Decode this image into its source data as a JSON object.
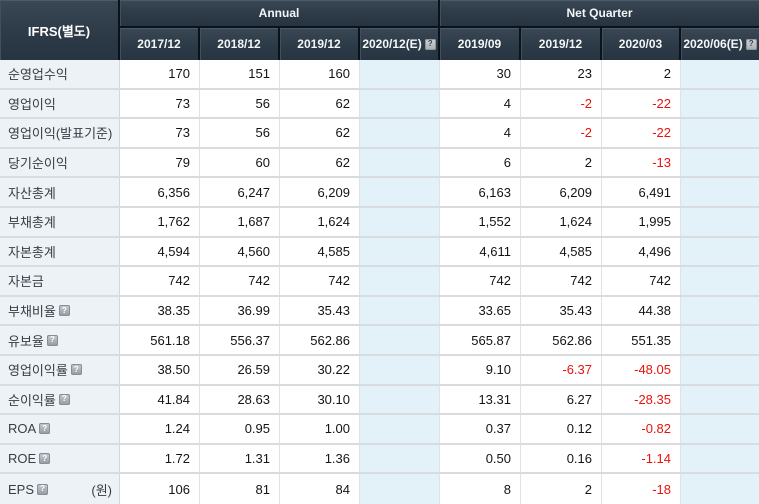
{
  "table": {
    "corner_label": "IFRS(별도)",
    "help_icon": "?",
    "groups": {
      "annual": "Annual",
      "net_quarter": "Net Quarter"
    },
    "columns": [
      {
        "label": "2017/12",
        "estimate": false
      },
      {
        "label": "2018/12",
        "estimate": false
      },
      {
        "label": "2019/12",
        "estimate": false
      },
      {
        "label": "2020/12(E)",
        "estimate": true
      },
      {
        "label": "2019/09",
        "estimate": false
      },
      {
        "label": "2019/12",
        "estimate": false
      },
      {
        "label": "2020/03",
        "estimate": false
      },
      {
        "label": "2020/06(E)",
        "estimate": true
      }
    ],
    "rows": [
      {
        "label": "순영업수익",
        "has_help": false,
        "unit": "",
        "values": [
          "170",
          "151",
          "160",
          "",
          "30",
          "23",
          "2",
          ""
        ]
      },
      {
        "label": "영업이익",
        "has_help": false,
        "unit": "",
        "values": [
          "73",
          "56",
          "62",
          "",
          "4",
          "-2",
          "-22",
          ""
        ]
      },
      {
        "label": "영업이익(발표기준)",
        "has_help": false,
        "unit": "",
        "values": [
          "73",
          "56",
          "62",
          "",
          "4",
          "-2",
          "-22",
          ""
        ]
      },
      {
        "label": "당기순이익",
        "has_help": false,
        "unit": "",
        "values": [
          "79",
          "60",
          "62",
          "",
          "6",
          "2",
          "-13",
          ""
        ]
      },
      {
        "label": "자산총계",
        "has_help": false,
        "unit": "",
        "values": [
          "6,356",
          "6,247",
          "6,209",
          "",
          "6,163",
          "6,209",
          "6,491",
          ""
        ]
      },
      {
        "label": "부채총계",
        "has_help": false,
        "unit": "",
        "values": [
          "1,762",
          "1,687",
          "1,624",
          "",
          "1,552",
          "1,624",
          "1,995",
          ""
        ]
      },
      {
        "label": "자본총계",
        "has_help": false,
        "unit": "",
        "values": [
          "4,594",
          "4,560",
          "4,585",
          "",
          "4,611",
          "4,585",
          "4,496",
          ""
        ]
      },
      {
        "label": "자본금",
        "has_help": false,
        "unit": "",
        "values": [
          "742",
          "742",
          "742",
          "",
          "742",
          "742",
          "742",
          ""
        ]
      },
      {
        "label": "부채비율",
        "has_help": true,
        "unit": "",
        "values": [
          "38.35",
          "36.99",
          "35.43",
          "",
          "33.65",
          "35.43",
          "44.38",
          ""
        ]
      },
      {
        "label": "유보율",
        "has_help": true,
        "unit": "",
        "values": [
          "561.18",
          "556.37",
          "562.86",
          "",
          "565.87",
          "562.86",
          "551.35",
          ""
        ]
      },
      {
        "label": "영업이익률",
        "has_help": true,
        "unit": "",
        "values": [
          "38.50",
          "26.59",
          "30.22",
          "",
          "9.10",
          "-6.37",
          "-48.05",
          ""
        ]
      },
      {
        "label": "순이익률",
        "has_help": true,
        "unit": "",
        "values": [
          "41.84",
          "28.63",
          "30.10",
          "",
          "13.31",
          "6.27",
          "-28.35",
          ""
        ]
      },
      {
        "label": "ROA",
        "has_help": true,
        "unit": "",
        "values": [
          "1.24",
          "0.95",
          "1.00",
          "",
          "0.37",
          "0.12",
          "-0.82",
          ""
        ]
      },
      {
        "label": "ROE",
        "has_help": true,
        "unit": "",
        "values": [
          "1.72",
          "1.31",
          "1.36",
          "",
          "0.50",
          "0.16",
          "-1.14",
          ""
        ]
      },
      {
        "label": "EPS",
        "has_help": true,
        "unit": "(원)",
        "values": [
          "106",
          "81",
          "84",
          "",
          "8",
          "2",
          "-18",
          ""
        ]
      }
    ],
    "colors": {
      "header_bg": "#2d3a47",
      "header_gap": "#0b1219",
      "negative": "#e8130b",
      "estimate_col_bg": "#e3f1f9",
      "label_col_bg": "#edf2f7",
      "grid_line": "#d9dcdf"
    }
  }
}
